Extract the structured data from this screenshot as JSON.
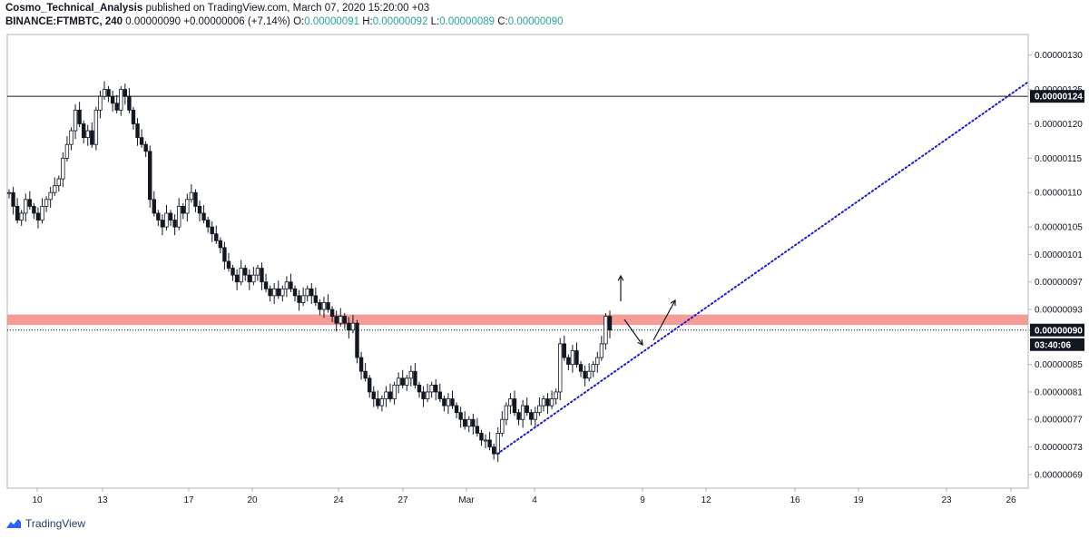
{
  "header": {
    "author": "Cosmo_Technical_Analysis",
    "published": " published on TradingView.com, March 07, 2020 15:20:00 +03",
    "symbol": "BINANCE:FTMBTC, 240",
    "last": "0.00000090",
    "change": "+0.00000006 (+7.14%)",
    "o_label": "O:",
    "o_value": "0.00000091",
    "h_label": "H:",
    "h_value": "0.00000092",
    "l_label": "L:",
    "l_value": "0.00000089",
    "c_label": "C:",
    "c_value": "0.00000090"
  },
  "footer": {
    "brand": "TradingView"
  },
  "chart_data": {
    "type": "candlestick",
    "y_ticks": [
      "0.00000130",
      "0.00000125",
      "0.00000120",
      "0.00000115",
      "0.00000110",
      "0.00000105",
      "0.00000101",
      "0.00000097",
      "0.00000093",
      "0.00000090",
      "0.00000085",
      "0.00000081",
      "0.00000077",
      "0.00000073",
      "0.00000069"
    ],
    "ylim": [
      6.7e-07,
      1.33e-06
    ],
    "x_ticks": [
      "10",
      "13",
      "17",
      "20",
      "24",
      "27",
      "Mar",
      "4",
      "9",
      "12",
      "16",
      "19",
      "23",
      "26"
    ],
    "price_tags": [
      {
        "label": "0.00000124",
        "value": 1.24e-06,
        "style": "dark"
      },
      {
        "label": "0.00000090",
        "value": 9e-07,
        "style": "dark"
      },
      {
        "label": "03:40:06",
        "value": 8.8e-07,
        "style": "dark"
      }
    ],
    "horizontal_line": 1.24e-06,
    "current_price_line": 9e-07,
    "resistance_zone": [
      9.1e-07,
      9.2e-07
    ],
    "close_series": [
      1.1,
      1.08,
      1.06,
      1.07,
      1.09,
      1.08,
      1.07,
      1.06,
      1.08,
      1.09,
      1.1,
      1.11,
      1.12,
      1.15,
      1.17,
      1.19,
      1.22,
      1.2,
      1.18,
      1.19,
      1.17,
      1.22,
      1.24,
      1.25,
      1.24,
      1.23,
      1.22,
      1.25,
      1.24,
      1.22,
      1.2,
      1.18,
      1.17,
      1.16,
      1.09,
      1.07,
      1.06,
      1.05,
      1.07,
      1.06,
      1.05,
      1.08,
      1.07,
      1.09,
      1.1,
      1.08,
      1.07,
      1.06,
      1.05,
      1.04,
      1.03,
      1.02,
      1.0,
      0.99,
      0.98,
      0.97,
      0.99,
      0.98,
      0.97,
      0.98,
      0.99,
      0.97,
      0.96,
      0.95,
      0.96,
      0.95,
      0.96,
      0.97,
      0.96,
      0.95,
      0.94,
      0.95,
      0.96,
      0.95,
      0.94,
      0.93,
      0.94,
      0.93,
      0.92,
      0.91,
      0.92,
      0.91,
      0.9,
      0.91,
      0.86,
      0.84,
      0.83,
      0.81,
      0.8,
      0.79,
      0.8,
      0.81,
      0.8,
      0.82,
      0.83,
      0.82,
      0.83,
      0.84,
      0.82,
      0.81,
      0.8,
      0.81,
      0.82,
      0.81,
      0.8,
      0.79,
      0.8,
      0.79,
      0.78,
      0.77,
      0.76,
      0.77,
      0.76,
      0.75,
      0.74,
      0.74,
      0.73,
      0.72,
      0.75,
      0.77,
      0.79,
      0.8,
      0.78,
      0.77,
      0.79,
      0.78,
      0.77,
      0.78,
      0.79,
      0.8,
      0.79,
      0.8,
      0.81,
      0.88,
      0.86,
      0.85,
      0.87,
      0.85,
      0.84,
      0.83,
      0.84,
      0.85,
      0.86,
      0.88,
      0.92,
      0.9
    ],
    "trendline": {
      "from_x": "Mar 2",
      "from_y": 7.2e-07,
      "to_x": "26",
      "to_y": 1.26e-06,
      "style": "dotted",
      "color": "#1a1adb"
    },
    "annotations": [
      "up-arrow",
      "down-arrow",
      "up-arrow"
    ]
  }
}
